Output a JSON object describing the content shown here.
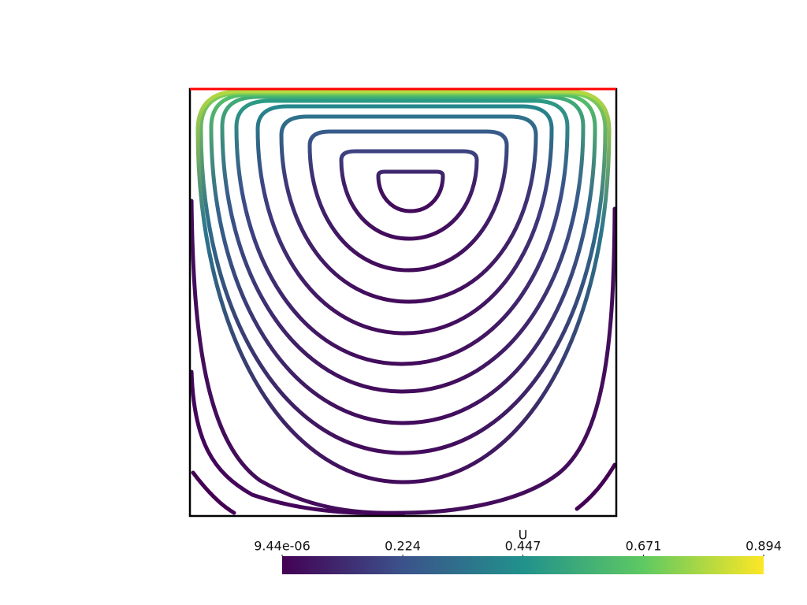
{
  "chart_data": {
    "type": "colorbar",
    "title": "U",
    "colormap": "viridis",
    "clim": [
      9.44e-06,
      0.894
    ],
    "ticks": [
      {
        "value": 9.44e-06,
        "label": "9.44e-06"
      },
      0.224,
      0.447,
      0.671,
      0.894
    ]
  }
}
